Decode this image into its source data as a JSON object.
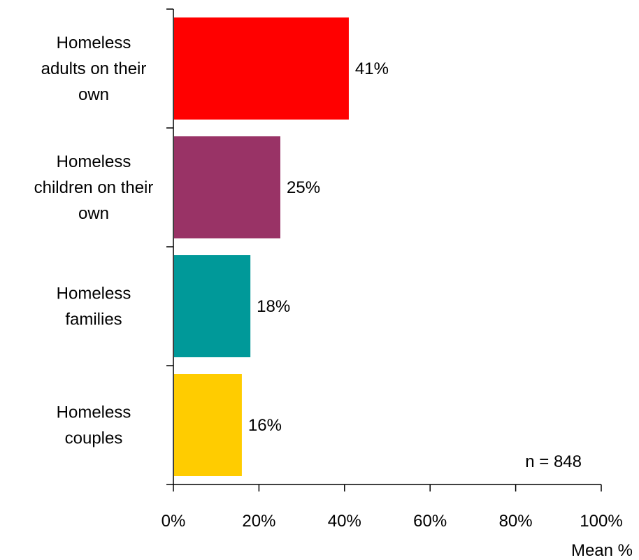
{
  "chart_data": {
    "type": "bar",
    "orientation": "horizontal",
    "categories": [
      "Homeless adults on their own",
      "Homeless children on their own",
      "Homeless families",
      "Homeless couples"
    ],
    "category_label_lines": [
      [
        "Homeless",
        "adults on their",
        "own"
      ],
      [
        "Homeless",
        "children on their",
        "own"
      ],
      [
        "Homeless",
        "families"
      ],
      [
        "Homeless",
        "couples"
      ]
    ],
    "values": [
      41,
      25,
      18,
      16
    ],
    "value_labels": [
      "41%",
      "25%",
      "18%",
      "16%"
    ],
    "colors": [
      "#ff0000",
      "#993366",
      "#009999",
      "#ffcc00"
    ],
    "xlim": [
      0,
      100
    ],
    "x_ticks": [
      0,
      20,
      40,
      60,
      80,
      100
    ],
    "x_tick_labels": [
      "0%",
      "20%",
      "40%",
      "60%",
      "80%",
      "100%"
    ],
    "xlabel": "Mean %",
    "annotation": "n = 848",
    "grid": false,
    "legend": "none"
  }
}
